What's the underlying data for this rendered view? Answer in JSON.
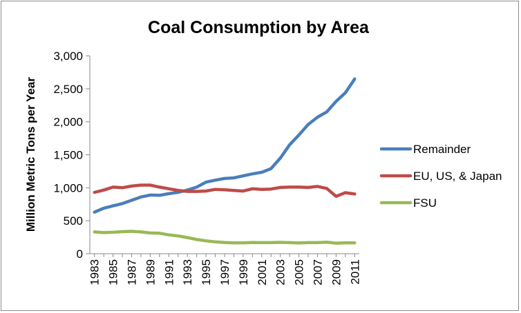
{
  "chart_data": {
    "type": "line",
    "title": "Coal Consumption by Area",
    "xlabel": "",
    "ylabel": "Million Metric Tons per Year",
    "ylim": [
      0,
      3000
    ],
    "yticks": [
      0,
      500,
      1000,
      1500,
      2000,
      2500,
      3000
    ],
    "ytick_labels": [
      "0",
      "500",
      "1,000",
      "1,500",
      "2,000",
      "2,500",
      "3,000"
    ],
    "x": [
      1983,
      1984,
      1985,
      1986,
      1987,
      1988,
      1989,
      1990,
      1991,
      1992,
      1993,
      1994,
      1995,
      1996,
      1997,
      1998,
      1999,
      2000,
      2001,
      2002,
      2003,
      2004,
      2005,
      2006,
      2007,
      2008,
      2009,
      2010,
      2011
    ],
    "xtick_labels": [
      "1983",
      "1985",
      "1987",
      "1989",
      "1991",
      "1993",
      "1995",
      "1997",
      "1999",
      "2001",
      "2003",
      "2005",
      "2007",
      "2009",
      "2011"
    ],
    "grid": false,
    "legend_position": "right",
    "series": [
      {
        "name": "Remainder",
        "color": "#4a7ebb",
        "values": [
          630,
          690,
          725,
          760,
          810,
          860,
          890,
          885,
          910,
          930,
          965,
          1010,
          1085,
          1115,
          1140,
          1150,
          1180,
          1210,
          1235,
          1290,
          1450,
          1650,
          1800,
          1960,
          2070,
          2150,
          2310,
          2440,
          2650
        ]
      },
      {
        "name": "EU, US, & Japan",
        "color": "#be4b48",
        "values": [
          930,
          965,
          1010,
          1000,
          1025,
          1040,
          1040,
          1010,
          985,
          960,
          945,
          945,
          950,
          975,
          970,
          960,
          950,
          985,
          975,
          980,
          1005,
          1010,
          1010,
          1005,
          1020,
          990,
          870,
          925,
          905
        ]
      },
      {
        "name": "FSU",
        "color": "#98b954",
        "values": [
          330,
          320,
          325,
          335,
          340,
          330,
          315,
          310,
          285,
          270,
          245,
          215,
          195,
          180,
          170,
          165,
          165,
          170,
          168,
          168,
          172,
          168,
          163,
          168,
          168,
          175,
          160,
          165,
          165
        ]
      }
    ]
  }
}
